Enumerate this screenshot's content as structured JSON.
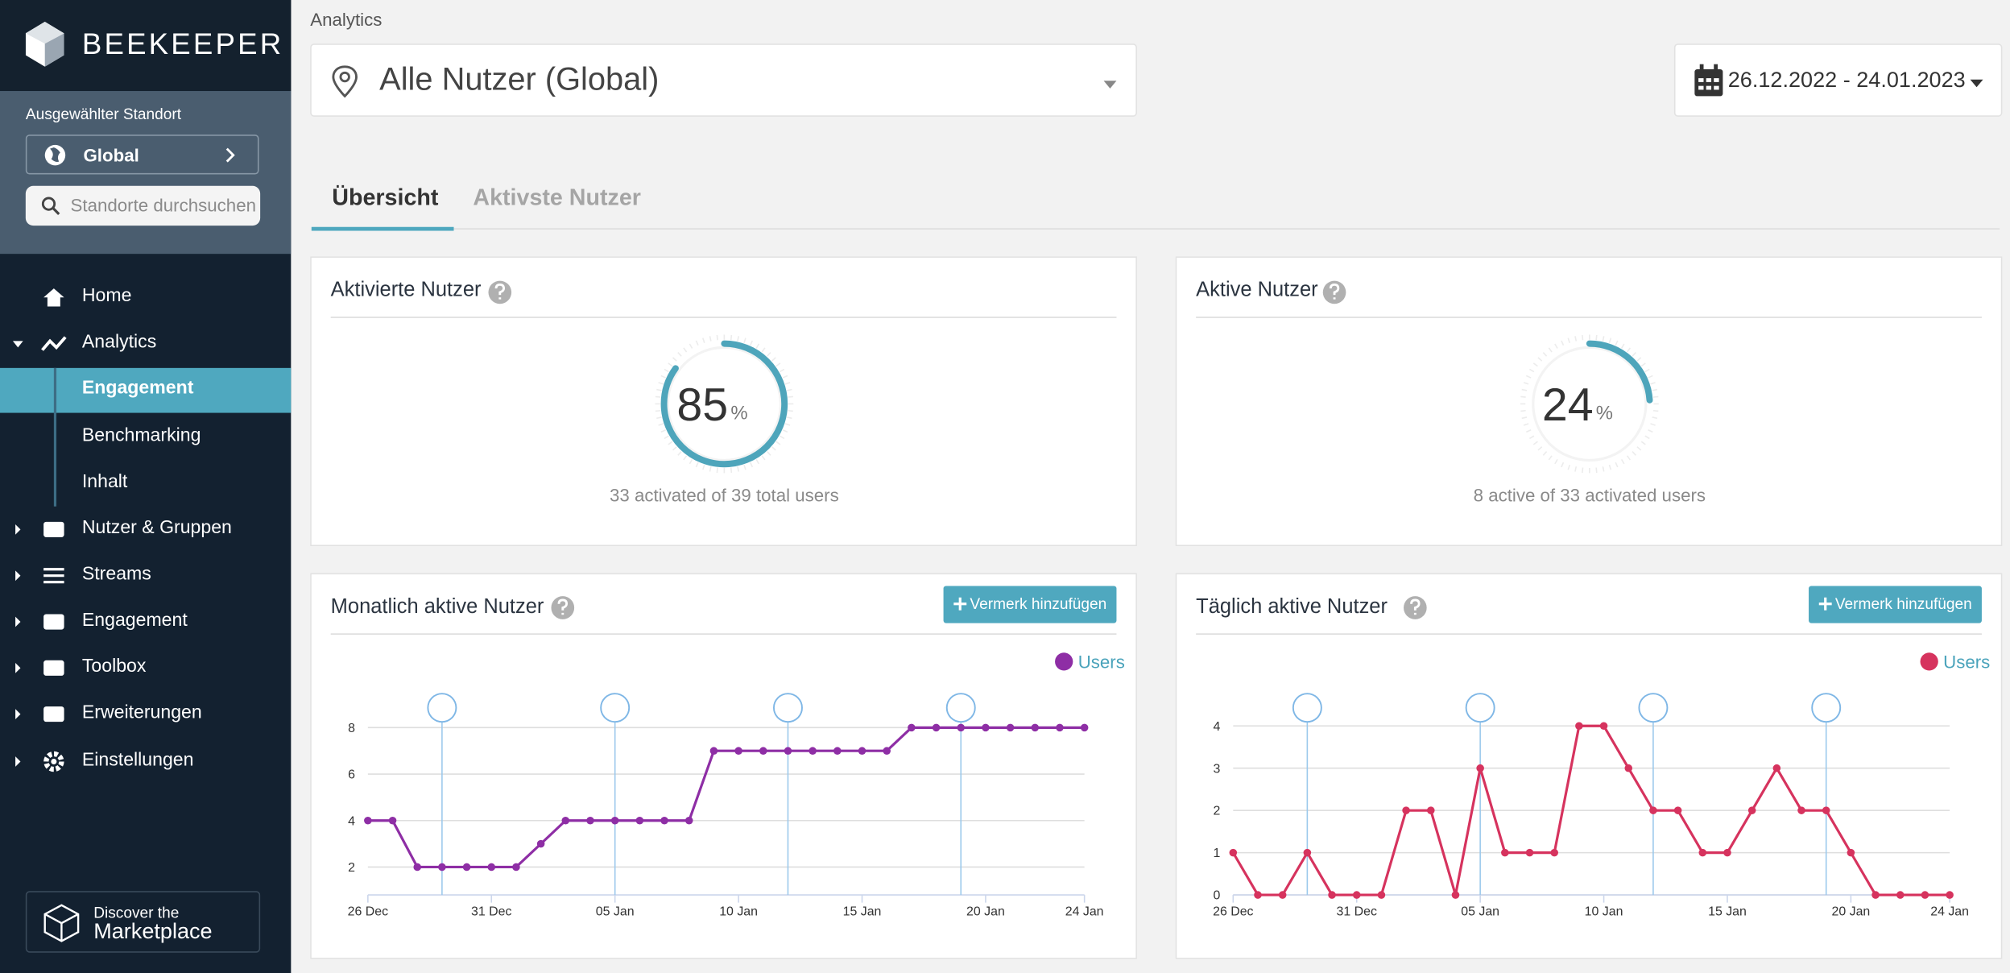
{
  "sidebar": {
    "brand": "BEEKEEPER",
    "location_label": "Ausgewählter Standort",
    "location": "Global",
    "search_placeholder": "Standorte durchsuchen",
    "menu": [
      "Home",
      "Analytics",
      "Nutzer & Gruppen",
      "Streams",
      "Engagement",
      "Toolbox",
      "Erweiterungen",
      "Einstellungen"
    ],
    "submenu": [
      "Engagement",
      "Benchmarking",
      "Inhalt"
    ],
    "marketplace": {
      "line1": "Discover the",
      "line2": "Marketplace"
    }
  },
  "header": {
    "breadcrumb": "Analytics",
    "user_filter": "Alle Nutzer (Global)",
    "date_range": "26.12.2022 - 24.01.2023"
  },
  "tabs": [
    "Übersicht",
    "Aktivste Nutzer"
  ],
  "gauges": [
    {
      "title": "Aktivierte Nutzer",
      "value": 85,
      "unit": "%",
      "caption": "33 activated of 39 total users"
    },
    {
      "title": "Aktive Nutzer",
      "value": 24,
      "unit": "%",
      "caption": "8 active of 33 activated users"
    }
  ],
  "chart_data": [
    {
      "type": "line",
      "title": "Monatlich aktive Nutzer",
      "button": "Vermerk hinzufügen",
      "categories": [
        "26 Dec",
        null,
        null,
        null,
        null,
        "31 Dec",
        null,
        null,
        null,
        null,
        "05 Jan",
        null,
        null,
        null,
        null,
        "10 Jan",
        null,
        null,
        null,
        null,
        "15 Jan",
        null,
        null,
        null,
        null,
        "20 Jan",
        null,
        null,
        null,
        "24 Jan"
      ],
      "series": [
        {
          "name": "Users",
          "color": "#8e2ea5",
          "values": [
            4,
            4,
            2,
            2,
            2,
            2,
            2,
            3,
            4,
            4,
            4,
            4,
            4,
            4,
            7,
            7,
            7,
            7,
            7,
            7,
            7,
            7,
            8,
            8,
            8,
            8,
            8,
            8,
            8,
            8
          ]
        }
      ],
      "ylim": [
        0.8,
        8.8
      ],
      "yticks": [
        2,
        4,
        6,
        8
      ],
      "grid": true
    },
    {
      "type": "line",
      "title": "Täglich aktive Nutzer",
      "button": "Vermerk hinzufügen",
      "categories": [
        "26 Dec",
        null,
        null,
        null,
        null,
        "31 Dec",
        null,
        null,
        null,
        null,
        "05 Jan",
        null,
        null,
        null,
        null,
        "10 Jan",
        null,
        null,
        null,
        null,
        "15 Jan",
        null,
        null,
        null,
        null,
        "20 Jan",
        null,
        null,
        null,
        "24 Jan"
      ],
      "series": [
        {
          "name": "Users",
          "color": "#d6335e",
          "values": [
            1,
            0,
            0,
            1,
            0,
            0,
            0,
            2,
            2,
            0,
            3,
            1,
            1,
            1,
            4,
            4,
            3,
            2,
            2,
            1,
            1,
            2,
            3,
            2,
            2,
            1,
            0,
            0,
            0,
            0
          ]
        }
      ],
      "ylim": [
        0,
        4.4
      ],
      "yticks": [
        0,
        1,
        2,
        3,
        4
      ],
      "grid": true
    }
  ]
}
